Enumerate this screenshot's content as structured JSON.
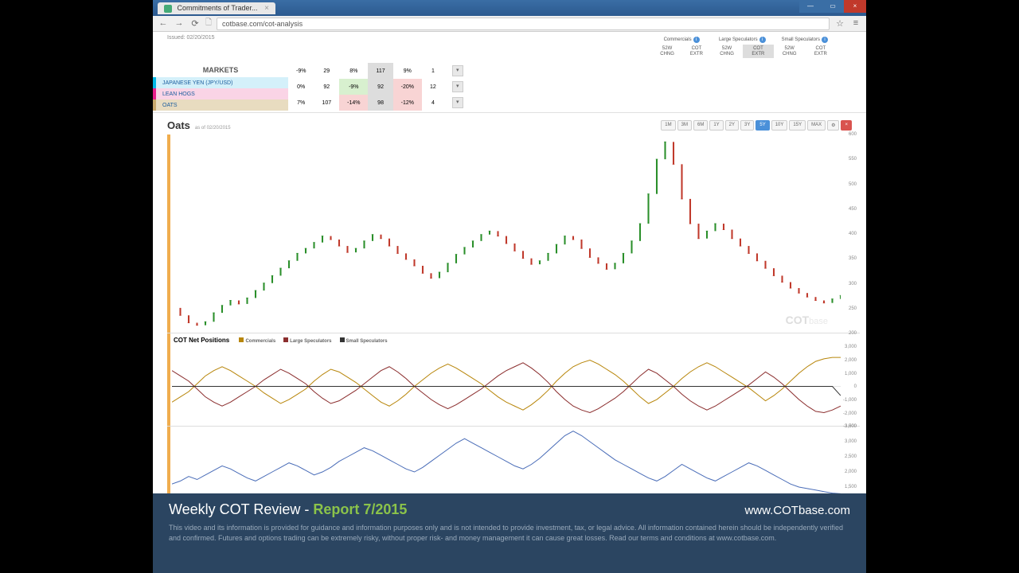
{
  "browser": {
    "tab_title": "Commitments of Trader...",
    "url": "cotbase.com/cot-analysis"
  },
  "page": {
    "issued_label": "Issued: 02/20/2015",
    "markets_title": "MARKETS"
  },
  "table_headers": {
    "commercials": "Commercials",
    "large_spec": "Large Speculators",
    "small_spec": "Small Speculators",
    "col_52w": "52W CHNG",
    "col_cot": "COT EXTR"
  },
  "markets": [
    {
      "name": "JAPANESE YEN (JPY/USD)",
      "strip": "#00b8e6",
      "bg": "#d4f0fa",
      "c1": "-9%",
      "c2": "29",
      "c3": "8%",
      "c4": "117",
      "c5": "9%",
      "c6": "1"
    },
    {
      "name": "LEAN HOGS",
      "strip": "#e91e8c",
      "bg": "#fad4e6",
      "c1": "0%",
      "c2": "92",
      "c3": "-9%",
      "c4": "92",
      "c5": "-20%",
      "c6": "12"
    },
    {
      "name": "OATS",
      "strip": "#c9a96e",
      "bg": "#e8dcc0",
      "c1": "7%",
      "c2": "107",
      "c3": "-14%",
      "c4": "98",
      "c5": "-12%",
      "c6": "4"
    }
  ],
  "chart": {
    "title": "Oats",
    "as_of": "as of 02/20/2015",
    "ranges": [
      "1M",
      "3M",
      "6M",
      "1Y",
      "2Y",
      "3Y",
      "5Y",
      "10Y",
      "15Y",
      "MAX"
    ],
    "active_range": "5Y",
    "price": {
      "ymin": 200,
      "ymax": 600,
      "ytick_step": 50,
      "watermark": "COTbase",
      "data": [
        250,
        235,
        220,
        215,
        222,
        240,
        255,
        265,
        258,
        270,
        285,
        300,
        315,
        330,
        345,
        360,
        370,
        382,
        395,
        388,
        375,
        362,
        370,
        385,
        398,
        390,
        375,
        360,
        348,
        335,
        320,
        310,
        322,
        340,
        358,
        372,
        385,
        398,
        405,
        395,
        380,
        365,
        350,
        338,
        345,
        360,
        378,
        395,
        388,
        370,
        352,
        340,
        328,
        340,
        360,
        385,
        420,
        480,
        550,
        585,
        540,
        470,
        420,
        390,
        405,
        420,
        408,
        390,
        375,
        360,
        345,
        330,
        315,
        302,
        290,
        280,
        272,
        265,
        260,
        268,
        275
      ]
    },
    "cot": {
      "label": "COT Net Positions",
      "legend": [
        {
          "label": "Commercials",
          "color": "#b8860b"
        },
        {
          "label": "Large Speculators",
          "color": "#8b2e2e"
        },
        {
          "label": "Small Speculators",
          "color": "#333"
        }
      ],
      "ymin": -3000,
      "ymax": 3000,
      "ytick": 1000,
      "commercials": [
        -1200,
        -800,
        -400,
        200,
        800,
        1200,
        1500,
        1200,
        800,
        400,
        0,
        -500,
        -900,
        -1300,
        -1000,
        -600,
        -200,
        400,
        900,
        1300,
        1100,
        700,
        300,
        -200,
        -700,
        -1200,
        -1500,
        -1100,
        -600,
        0,
        500,
        1000,
        1400,
        1700,
        1400,
        1000,
        600,
        200,
        -300,
        -800,
        -1200,
        -1500,
        -1800,
        -1400,
        -900,
        -300,
        400,
        1000,
        1500,
        1800,
        2000,
        1700,
        1300,
        900,
        400,
        -200,
        -800,
        -1300,
        -1000,
        -500,
        0,
        600,
        1100,
        1500,
        1800,
        1500,
        1100,
        700,
        300,
        -100,
        -600,
        -1100,
        -700,
        -200,
        400,
        1000,
        1500,
        1900,
        2100,
        2200,
        2200
      ],
      "large_spec": [
        1200,
        800,
        400,
        -200,
        -800,
        -1200,
        -1500,
        -1200,
        -800,
        -400,
        0,
        500,
        900,
        1300,
        1000,
        600,
        200,
        -400,
        -900,
        -1300,
        -1100,
        -700,
        -300,
        200,
        700,
        1200,
        1500,
        1100,
        600,
        0,
        -500,
        -1000,
        -1400,
        -1700,
        -1400,
        -1000,
        -600,
        -200,
        300,
        800,
        1200,
        1500,
        1800,
        1400,
        900,
        300,
        -400,
        -1000,
        -1500,
        -1800,
        -2000,
        -1700,
        -1300,
        -900,
        -400,
        200,
        800,
        1300,
        1000,
        500,
        0,
        -600,
        -1100,
        -1500,
        -1800,
        -1500,
        -1100,
        -700,
        -300,
        100,
        600,
        1100,
        700,
        200,
        -400,
        -1000,
        -1500,
        -1900,
        -2000,
        -1800,
        -1500
      ],
      "small_spec": [
        0,
        0,
        0,
        0,
        0,
        0,
        0,
        0,
        0,
        0,
        0,
        0,
        0,
        0,
        0,
        0,
        0,
        0,
        0,
        0,
        0,
        0,
        0,
        0,
        0,
        0,
        0,
        0,
        0,
        0,
        0,
        0,
        0,
        0,
        0,
        0,
        0,
        0,
        0,
        0,
        0,
        0,
        0,
        0,
        0,
        0,
        0,
        0,
        0,
        0,
        0,
        0,
        0,
        0,
        0,
        0,
        0,
        0,
        0,
        0,
        0,
        0,
        0,
        0,
        0,
        0,
        0,
        0,
        0,
        0,
        0,
        0,
        0,
        0,
        0,
        0,
        0,
        0,
        0,
        0,
        -700
      ]
    },
    "oi": {
      "ymin": 1000,
      "ymax": 3500,
      "ytick": 500,
      "color": "#4a6db8",
      "data": [
        1600,
        1700,
        1850,
        1750,
        1900,
        2050,
        2200,
        2100,
        1950,
        1800,
        1700,
        1850,
        2000,
        2150,
        2300,
        2200,
        2050,
        1900,
        2000,
        2150,
        2350,
        2500,
        2650,
        2800,
        2700,
        2550,
        2400,
        2250,
        2100,
        2000,
        2150,
        2350,
        2550,
        2750,
        2950,
        3100,
        2950,
        2800,
        2650,
        2500,
        2350,
        2200,
        2100,
        2250,
        2450,
        2700,
        2950,
        3200,
        3350,
        3200,
        3000,
        2800,
        2600,
        2400,
        2250,
        2100,
        1950,
        1800,
        1700,
        1850,
        2050,
        2250,
        2100,
        1950,
        1800,
        1700,
        1850,
        2000,
        2150,
        2300,
        2200,
        2050,
        1900,
        1750,
        1600,
        1500,
        1450,
        1400,
        1350,
        1300,
        1280
      ]
    }
  },
  "footer": {
    "title_prefix": "Weekly COT Review - ",
    "title_report": "Report 7/2015",
    "url": "www.COTbase.com",
    "disclaimer": "This video and its information is provided for guidance and information purposes only and is not intended to provide investment, tax, or legal advice. All information contained herein should be independently verified and confirmed. Futures and options trading can be extremely risky, without proper risk- and money management it can cause great losses. Read our terms and conditions at www.cotbase.com."
  }
}
